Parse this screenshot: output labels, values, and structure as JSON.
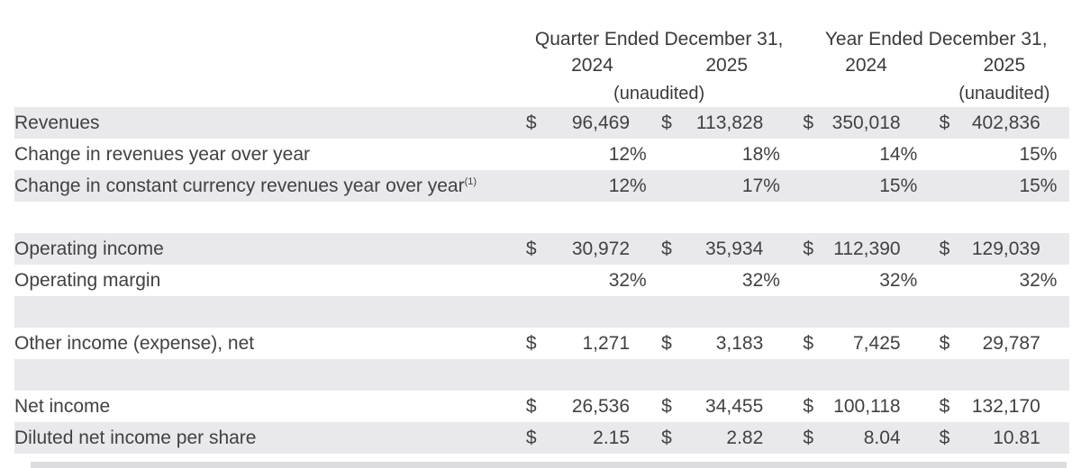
{
  "table": {
    "currency_symbol": "$",
    "percent_symbol": "%",
    "col_groups": [
      {
        "title": "Quarter Ended December 31,",
        "years": [
          "2024",
          "2025"
        ],
        "unaudited": "(unaudited)"
      },
      {
        "title": "Year Ended December 31,",
        "years": [
          "2024",
          "2025"
        ],
        "unaudited": "(unaudited)"
      }
    ],
    "rows": [
      {
        "label": "Revenues",
        "type": "currency",
        "shaded": true,
        "values": [
          "96,469",
          "113,828",
          "350,018",
          "402,836"
        ]
      },
      {
        "label": "Change in revenues year over year",
        "type": "percent",
        "shaded": false,
        "values": [
          "12",
          "18",
          "14",
          "15"
        ]
      },
      {
        "label": "Change in constant currency revenues year over year",
        "superscript": "(1)",
        "type": "percent",
        "shaded": true,
        "values": [
          "12",
          "17",
          "15",
          "15"
        ]
      },
      {
        "type": "spacer",
        "shaded": false
      },
      {
        "label": "Operating income",
        "type": "currency",
        "shaded": true,
        "values": [
          "30,972",
          "35,934",
          "112,390",
          "129,039"
        ]
      },
      {
        "label": "Operating margin",
        "type": "percent",
        "shaded": false,
        "values": [
          "32",
          "32",
          "32",
          "32"
        ]
      },
      {
        "type": "spacer",
        "shaded": true
      },
      {
        "label": "Other income (expense), net",
        "type": "currency",
        "shaded": false,
        "values": [
          "1,271",
          "3,183",
          "7,425",
          "29,787"
        ]
      },
      {
        "type": "spacer",
        "shaded": true
      },
      {
        "label": "Net income",
        "type": "currency",
        "shaded": false,
        "values": [
          "26,536",
          "34,455",
          "100,118",
          "132,170"
        ]
      },
      {
        "label": "Diluted net income per share",
        "type": "currency",
        "shaded": true,
        "values": [
          "2.15",
          "2.82",
          "8.04",
          "10.81"
        ]
      }
    ]
  },
  "colors": {
    "row_shade": "#e9e9eb",
    "text": "#414044",
    "bottom_strip": "#dddde0"
  }
}
